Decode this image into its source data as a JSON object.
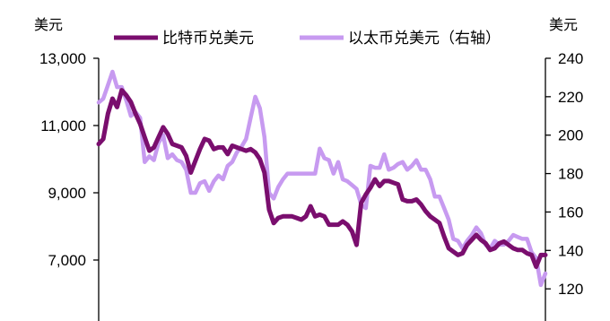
{
  "chart_data": {
    "type": "line",
    "left_axis": {
      "unit_label": "美元",
      "ticks": [
        7000,
        9000,
        11000,
        13000
      ],
      "tick_labels": [
        "7,000",
        "9,000",
        "11,000",
        "13,000"
      ],
      "ylim": [
        5000,
        13000
      ]
    },
    "right_axis": {
      "unit_label": "美元",
      "ticks": [
        120,
        140,
        160,
        180,
        200,
        220,
        240
      ],
      "tick_labels": [
        "120",
        "140",
        "160",
        "180",
        "200",
        "220",
        "240"
      ],
      "ylim": [
        100,
        240
      ]
    },
    "grid": false,
    "legend_position": "top",
    "series": [
      {
        "name": "比特币兑美元",
        "axis": "left",
        "color": "#7a0e6e",
        "values": [
          10450,
          10600,
          11350,
          11800,
          11550,
          12050,
          11900,
          11700,
          11350,
          11050,
          10650,
          10250,
          10350,
          10650,
          10950,
          10750,
          10450,
          10400,
          10350,
          10100,
          9600,
          9950,
          10300,
          10600,
          10550,
          10300,
          10350,
          10350,
          10150,
          10400,
          10350,
          10300,
          10250,
          10300,
          10200,
          10000,
          9600,
          8500,
          8100,
          8250,
          8300,
          8300,
          8300,
          8250,
          8200,
          8300,
          8600,
          8300,
          8350,
          8300,
          8050,
          8050,
          8050,
          8150,
          8050,
          7850,
          7450,
          8700,
          8950,
          9150,
          9400,
          9200,
          9350,
          9350,
          9300,
          9250,
          8800,
          8750,
          8750,
          8800,
          8650,
          8450,
          8300,
          8200,
          8100,
          7700,
          7350,
          7250,
          7150,
          7200,
          7450,
          7600,
          7750,
          7600,
          7500,
          7300,
          7350,
          7500,
          7550,
          7450,
          7350,
          7300,
          7300,
          7200,
          7150,
          6800,
          7150,
          7150
        ]
      },
      {
        "name": "以太币兑美元（右轴）",
        "axis": "right",
        "color": "#c79af0",
        "values": [
          217,
          219,
          226,
          233,
          225,
          225,
          218,
          210,
          212,
          209,
          186,
          189,
          187,
          196,
          200,
          188,
          190,
          187,
          186,
          182,
          170,
          170,
          175,
          176,
          171,
          176,
          179,
          177,
          184,
          186,
          191,
          194,
          198,
          209,
          220,
          214,
          199,
          170,
          167,
          173,
          177,
          180,
          180,
          180,
          180,
          180,
          180,
          180,
          193,
          188,
          187,
          180,
          186,
          177,
          176,
          174,
          172,
          164,
          162,
          184,
          183,
          183,
          190,
          182,
          183,
          185,
          186,
          182,
          184,
          187,
          182,
          182,
          177,
          168,
          168,
          162,
          156,
          146,
          145,
          141,
          145,
          148,
          152,
          149,
          143,
          141,
          145,
          143,
          143,
          145,
          148,
          147,
          146,
          146,
          139,
          136,
          122,
          128
        ]
      }
    ]
  }
}
